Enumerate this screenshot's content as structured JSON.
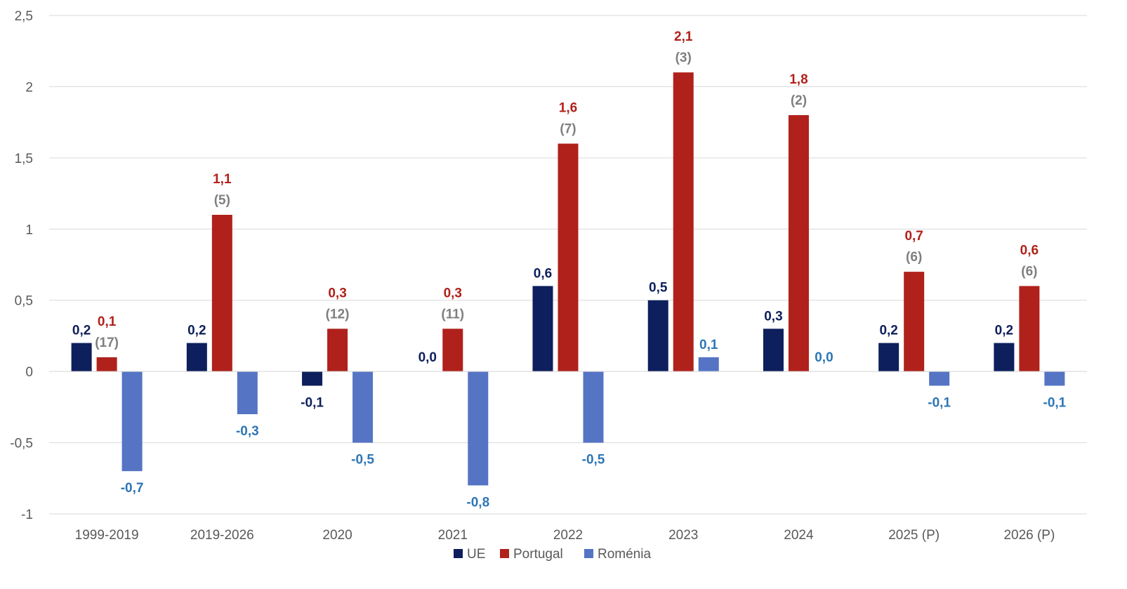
{
  "chart_data": {
    "type": "bar",
    "categories": [
      "1999-2019",
      "2019-2026",
      "2020",
      "2021",
      "2022",
      "2023",
      "2024",
      "2025 (P)",
      "2026 (P)"
    ],
    "series": [
      {
        "name": "UE",
        "color": "#0d1f5c",
        "label_color": "#0d1f5c",
        "values": [
          0.2,
          0.2,
          -0.1,
          0.0,
          0.6,
          0.5,
          0.3,
          0.2,
          0.2
        ],
        "labels": [
          "0,2",
          "0,2",
          "-0,1",
          "0,0",
          "0,6",
          "0,5",
          "0,3",
          "0,2",
          "0,2"
        ]
      },
      {
        "name": "Portugal",
        "color": "#b0211b",
        "label_color": "#b0211b",
        "values": [
          0.1,
          1.1,
          0.3,
          0.3,
          1.6,
          2.1,
          1.8,
          0.7,
          0.6
        ],
        "labels": [
          "0,1",
          "1,1",
          "0,3",
          "0,3",
          "1,6",
          "2,1",
          "1,8",
          "0,7",
          "0,6"
        ],
        "ranks": [
          "(17)",
          "(5)",
          "(12)",
          "(11)",
          "(7)",
          "(3)",
          "(2)",
          "(6)",
          "(6)"
        ]
      },
      {
        "name": "Roménia",
        "color": "#5574c4",
        "label_color": "#2e75b6",
        "values": [
          -0.7,
          -0.3,
          -0.5,
          -0.8,
          -0.5,
          0.1,
          0.0,
          -0.1,
          -0.1
        ],
        "labels": [
          "-0,7",
          "-0,3",
          "-0,5",
          "-0,8",
          "-0,5",
          "0,1",
          "0,0",
          "-0,1",
          "-0,1"
        ]
      }
    ],
    "ylim": [
      -1,
      2.5
    ],
    "yticks": [
      -1,
      -0.5,
      0,
      0.5,
      1,
      1.5,
      2,
      2.5
    ],
    "ytick_labels": [
      "-1",
      "-0,5",
      "0",
      "0,5",
      "1",
      "1,5",
      "2",
      "2,5"
    ],
    "title": "",
    "xlabel": "",
    "ylabel": "",
    "grid": true,
    "legend_position": "bottom"
  }
}
